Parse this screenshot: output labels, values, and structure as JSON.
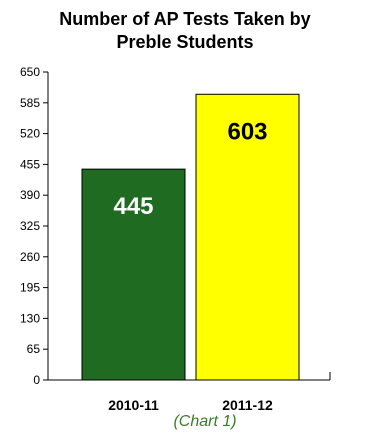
{
  "chart_data": {
    "type": "bar",
    "title_lines": [
      "Number of AP Tests Taken by",
      "Preble Students"
    ],
    "caption": "(Chart 1)",
    "categories": [
      "2010-11",
      "2011-12"
    ],
    "values": [
      445,
      603
    ],
    "data_labels": [
      "445",
      "603"
    ],
    "bar_colors": [
      "#1f6b22",
      "#ffff00"
    ],
    "data_label_colors": [
      "#ffffff",
      "#000000"
    ],
    "yticks": [
      0,
      65,
      130,
      195,
      260,
      325,
      390,
      455,
      520,
      585,
      650
    ],
    "ylim": [
      0,
      650
    ],
    "grid": false,
    "legend": "none"
  }
}
